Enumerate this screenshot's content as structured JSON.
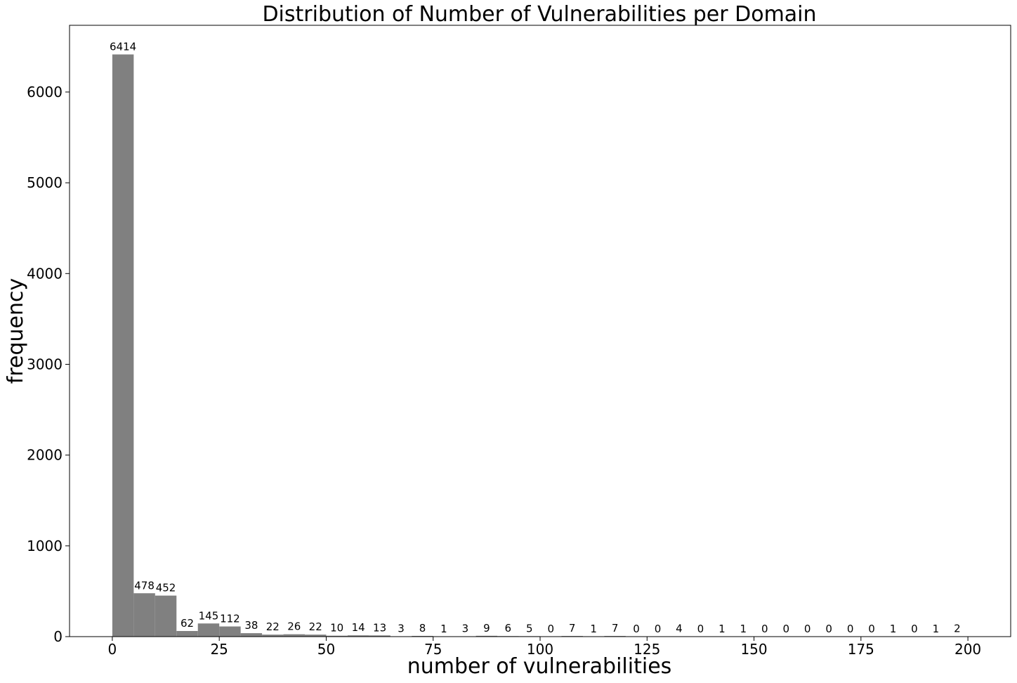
{
  "chart_data": {
    "type": "bar",
    "title": "Distribution of Number of Vulnerabilities per Domain",
    "xlabel": "number of vulnerabilities",
    "ylabel": "frequency",
    "bin_width": 5,
    "bin_start": 0,
    "values": [
      6414,
      478,
      452,
      62,
      145,
      112,
      38,
      22,
      26,
      22,
      10,
      14,
      13,
      3,
      8,
      1,
      3,
      9,
      6,
      5,
      0,
      7,
      1,
      7,
      0,
      0,
      4,
      0,
      1,
      1,
      0,
      0,
      0,
      0,
      0,
      0,
      1,
      0,
      1,
      2
    ],
    "xlim": [
      -10,
      210
    ],
    "ylim": [
      0,
      6735
    ],
    "xticks": [
      0,
      25,
      50,
      75,
      100,
      125,
      150,
      175,
      200
    ],
    "yticks": [
      0,
      1000,
      2000,
      3000,
      4000,
      5000,
      6000
    ],
    "bar_color": "#808080",
    "grid": false
  }
}
